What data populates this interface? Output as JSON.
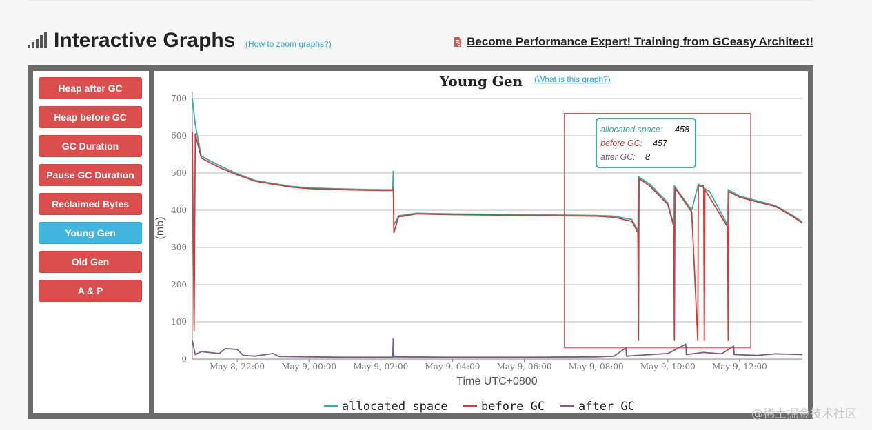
{
  "header": {
    "title": "Interactive Graphs",
    "zoom_link": "(How to zoom graphs?)",
    "training_link": "Become Performance Expert! Training from GCeasy Architect!"
  },
  "sidebar": {
    "buttons": [
      {
        "label": "Heap after GC",
        "active": false
      },
      {
        "label": "Heap before GC",
        "active": false
      },
      {
        "label": "GC Duration",
        "active": false
      },
      {
        "label": "Pause GC Duration",
        "active": false
      },
      {
        "label": "Reclaimed Bytes",
        "active": false
      },
      {
        "label": "Young Gen",
        "active": true
      },
      {
        "label": "Old Gen",
        "active": false
      },
      {
        "label": "A & P",
        "active": false
      }
    ]
  },
  "tooltip": {
    "rows": [
      {
        "label": "allocated space:",
        "value": "458"
      },
      {
        "label": "before GC:",
        "value": "457"
      },
      {
        "label": "after GC:",
        "value": "8"
      }
    ]
  },
  "watermark": "@稀土掘金技术社区",
  "colors": {
    "allocated": "#3aaca2",
    "before": "#c9413f",
    "after": "#7b5b87",
    "button": "#db4e4e",
    "button_active": "#41b6de"
  },
  "chart_data": {
    "type": "line",
    "title": "Young Gen",
    "help_link": "(What is this graph?)",
    "xlabel": "Time UTC+0800",
    "ylabel": "(mb)",
    "ylim": [
      0,
      700
    ],
    "xlim": [
      "May 8, 20:45",
      "May 9, 13:45"
    ],
    "yticks": [
      0,
      100,
      200,
      300,
      400,
      500,
      600,
      700
    ],
    "xticks": [
      "May 8, 22:00",
      "May 9, 00:00",
      "May 9, 02:00",
      "May 9, 04:00",
      "May 9, 06:00",
      "May 9, 08:00",
      "May 9, 10:00",
      "May 9, 12:00"
    ],
    "grid": true,
    "legend_position": "bottom",
    "zoom_window": {
      "x": [
        "May 9, 08:00",
        "May 9, 12:00"
      ],
      "y": [
        30,
        660
      ]
    },
    "series": [
      {
        "name": "allocated space",
        "points": [
          [
            "May 8, 20:45",
            700
          ],
          [
            "May 8, 20:50",
            630
          ],
          [
            "May 8, 21:00",
            545
          ],
          [
            "May 8, 21:30",
            520
          ],
          [
            "May 8, 22:00",
            498
          ],
          [
            "May 8, 22:30",
            480
          ],
          [
            "May 8, 23:00",
            472
          ],
          [
            "May 8, 23:30",
            464
          ],
          [
            "May 9, 00:00",
            460
          ],
          [
            "May 9, 01:00",
            457
          ],
          [
            "May 9, 02:00",
            455
          ],
          [
            "May 9, 02:20",
            455
          ],
          [
            "May 9, 02:21",
            505
          ],
          [
            "May 9, 02:22",
            360
          ],
          [
            "May 9, 02:30",
            385
          ],
          [
            "May 9, 03:00",
            392
          ],
          [
            "May 9, 04:00",
            390
          ],
          [
            "May 9, 05:00",
            389
          ],
          [
            "May 9, 06:00",
            388
          ],
          [
            "May 9, 07:00",
            387
          ],
          [
            "May 9, 08:00",
            386
          ],
          [
            "May 9, 08:30",
            384
          ],
          [
            "May 9, 09:00",
            375
          ],
          [
            "May 9, 09:10",
            345
          ],
          [
            "May 9, 09:11",
            490
          ],
          [
            "May 9, 09:30",
            470
          ],
          [
            "May 9, 10:00",
            420
          ],
          [
            "May 9, 10:10",
            360
          ],
          [
            "May 9, 10:11",
            465
          ],
          [
            "May 9, 10:40",
            400
          ],
          [
            "May 9, 10:51",
            470
          ],
          [
            "May 9, 11:10",
            450
          ],
          [
            "May 9, 11:40",
            360
          ],
          [
            "May 9, 11:41",
            455
          ],
          [
            "May 9, 12:00",
            438
          ],
          [
            "May 9, 12:30",
            425
          ],
          [
            "May 9, 13:00",
            412
          ],
          [
            "May 9, 13:30",
            385
          ],
          [
            "May 9, 13:45",
            368
          ]
        ]
      },
      {
        "name": "before GC",
        "points": [
          [
            "May 8, 20:45",
            610
          ],
          [
            "May 8, 20:48",
            75
          ],
          [
            "May 8, 20:50",
            605
          ],
          [
            "May 8, 21:00",
            540
          ],
          [
            "May 8, 21:30",
            515
          ],
          [
            "May 8, 22:00",
            495
          ],
          [
            "May 8, 22:30",
            478
          ],
          [
            "May 8, 23:00",
            470
          ],
          [
            "May 8, 23:30",
            462
          ],
          [
            "May 9, 00:00",
            458
          ],
          [
            "May 9, 01:00",
            455
          ],
          [
            "May 9, 02:00",
            453
          ],
          [
            "May 9, 02:20",
            453
          ],
          [
            "May 9, 02:21",
            460
          ],
          [
            "May 9, 02:22",
            340
          ],
          [
            "May 9, 02:30",
            382
          ],
          [
            "May 9, 03:00",
            390
          ],
          [
            "May 9, 04:00",
            388
          ],
          [
            "May 9, 05:00",
            387
          ],
          [
            "May 9, 06:00",
            386
          ],
          [
            "May 9, 07:00",
            385
          ],
          [
            "May 9, 08:00",
            384
          ],
          [
            "May 9, 08:30",
            381
          ],
          [
            "May 9, 09:00",
            370
          ],
          [
            "May 9, 09:10",
            340
          ],
          [
            "May 9, 09:11",
            50
          ],
          [
            "May 9, 09:12",
            485
          ],
          [
            "May 9, 09:30",
            465
          ],
          [
            "May 9, 10:00",
            415
          ],
          [
            "May 9, 10:10",
            355
          ],
          [
            "May 9, 10:11",
            50
          ],
          [
            "May 9, 10:12",
            460
          ],
          [
            "May 9, 10:40",
            395
          ],
          [
            "May 9, 10:50",
            50
          ],
          [
            "May 9, 10:51",
            465
          ],
          [
            "May 9, 11:00",
            465
          ],
          [
            "May 9, 11:01",
            50
          ],
          [
            "May 9, 11:02",
            455
          ],
          [
            "May 9, 11:40",
            355
          ],
          [
            "May 9, 11:41",
            50
          ],
          [
            "May 9, 11:42",
            450
          ],
          [
            "May 9, 12:00",
            435
          ],
          [
            "May 9, 12:30",
            422
          ],
          [
            "May 9, 13:00",
            410
          ],
          [
            "May 9, 13:30",
            382
          ],
          [
            "May 9, 13:45",
            365
          ]
        ]
      },
      {
        "name": "after GC",
        "points": [
          [
            "May 8, 20:45",
            50
          ],
          [
            "May 8, 20:50",
            12
          ],
          [
            "May 8, 21:00",
            20
          ],
          [
            "May 8, 21:30",
            15
          ],
          [
            "May 8, 21:40",
            28
          ],
          [
            "May 8, 22:00",
            26
          ],
          [
            "May 8, 22:10",
            10
          ],
          [
            "May 8, 22:30",
            8
          ],
          [
            "May 8, 23:00",
            15
          ],
          [
            "May 8, 23:10",
            7
          ],
          [
            "May 9, 00:00",
            6
          ],
          [
            "May 9, 01:00",
            5
          ],
          [
            "May 9, 02:00",
            5
          ],
          [
            "May 9, 02:20",
            5
          ],
          [
            "May 9, 02:21",
            55
          ],
          [
            "May 9, 02:22",
            6
          ],
          [
            "May 9, 04:00",
            5
          ],
          [
            "May 9, 06:00",
            5
          ],
          [
            "May 9, 08:00",
            6
          ],
          [
            "May 9, 08:30",
            8
          ],
          [
            "May 9, 08:50",
            30
          ],
          [
            "May 9, 08:51",
            8
          ],
          [
            "May 9, 09:30",
            12
          ],
          [
            "May 9, 10:00",
            15
          ],
          [
            "May 9, 10:30",
            40
          ],
          [
            "May 9, 10:31",
            12
          ],
          [
            "May 9, 11:00",
            18
          ],
          [
            "May 9, 11:30",
            14
          ],
          [
            "May 9, 11:50",
            35
          ],
          [
            "May 9, 11:51",
            12
          ],
          [
            "May 9, 12:30",
            10
          ],
          [
            "May 9, 13:00",
            14
          ],
          [
            "May 9, 13:45",
            12
          ]
        ]
      }
    ]
  }
}
